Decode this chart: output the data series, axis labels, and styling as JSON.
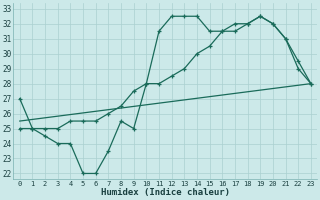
{
  "xlabel": "Humidex (Indice chaleur)",
  "bg_color": "#cce9e9",
  "line_color": "#1a6b5a",
  "grid_color": "#aad0d0",
  "xlim": [
    -0.5,
    23.5
  ],
  "ylim": [
    21.6,
    33.4
  ],
  "xtick_labels": [
    "0",
    "1",
    "2",
    "3",
    "4",
    "5",
    "6",
    "7",
    "8",
    "9",
    "10",
    "11",
    "12",
    "13",
    "14",
    "15",
    "16",
    "17",
    "18",
    "19",
    "20",
    "21",
    "22",
    "23"
  ],
  "xticks": [
    0,
    1,
    2,
    3,
    4,
    5,
    6,
    7,
    8,
    9,
    10,
    11,
    12,
    13,
    14,
    15,
    16,
    17,
    18,
    19,
    20,
    21,
    22,
    23
  ],
  "yticks": [
    22,
    23,
    24,
    25,
    26,
    27,
    28,
    29,
    30,
    31,
    32,
    33
  ],
  "line1_x": [
    0,
    1,
    2,
    3,
    4,
    5,
    6,
    7,
    8,
    9,
    10,
    11,
    12,
    13,
    14,
    15,
    16,
    17,
    18,
    19,
    20,
    21,
    22,
    23
  ],
  "line1_y": [
    27,
    25,
    24.5,
    24,
    24,
    22,
    22,
    23.5,
    25.5,
    25,
    28,
    31.5,
    32.5,
    32.5,
    32.5,
    31.5,
    31.5,
    31.5,
    32,
    32.5,
    32,
    31,
    29,
    28
  ],
  "line2_x": [
    0,
    1,
    2,
    3,
    4,
    5,
    6,
    7,
    8,
    9,
    10,
    11,
    12,
    13,
    14,
    15,
    16,
    17,
    18,
    19,
    20,
    21,
    22,
    23
  ],
  "line2_y": [
    25,
    25,
    25,
    25,
    25.5,
    25.5,
    25.5,
    26,
    26.5,
    27.5,
    28,
    28,
    28.5,
    29,
    30,
    30.5,
    31.5,
    32,
    32,
    32.5,
    32,
    31,
    29.5,
    28
  ],
  "line3_x": [
    0,
    23
  ],
  "line3_y": [
    25.5,
    28
  ]
}
